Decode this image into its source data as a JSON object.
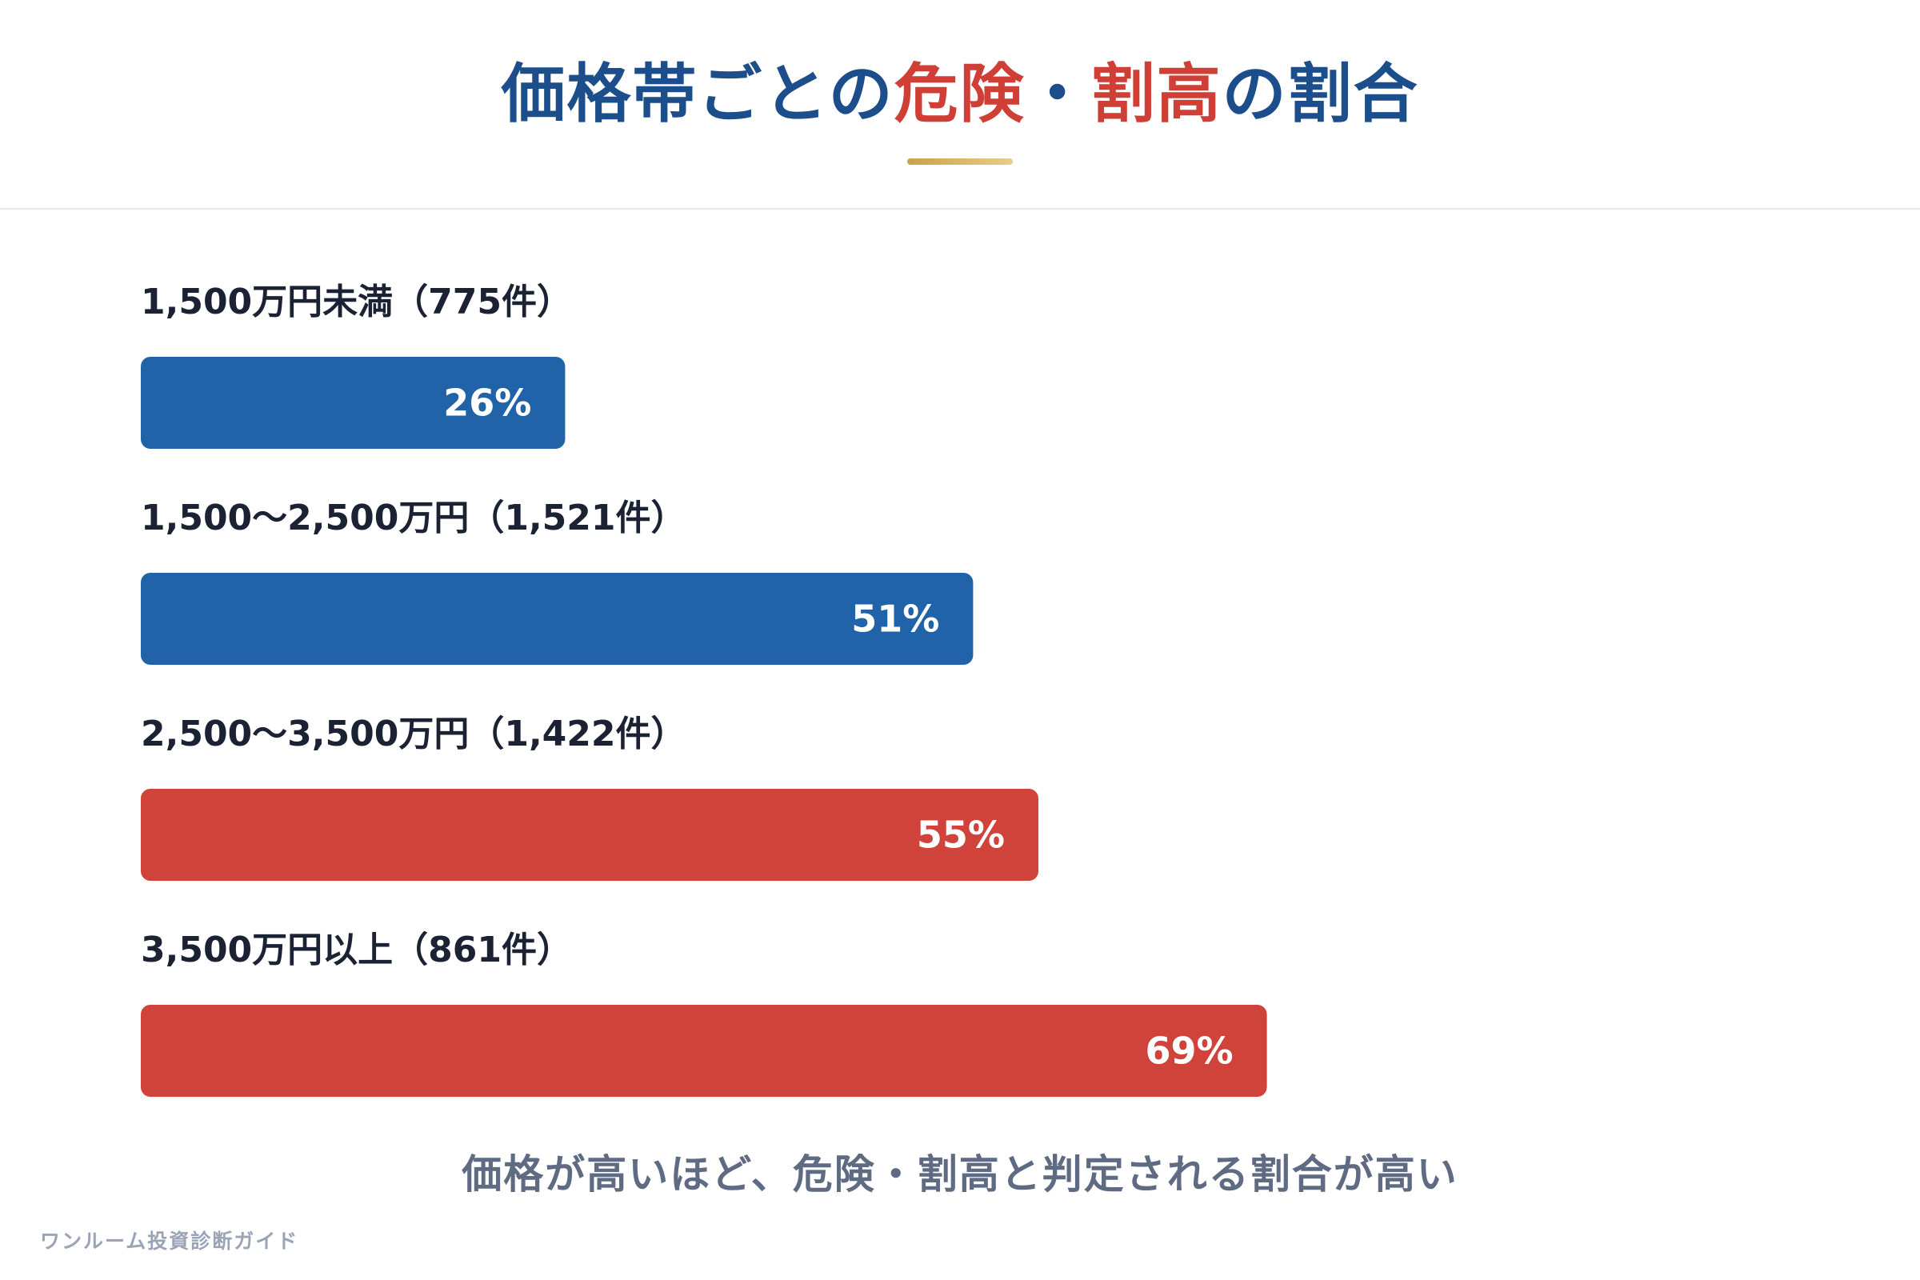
{
  "title": {
    "part1": "価格帯ごとの",
    "accent1": "危険",
    "sep": "・",
    "accent2": "割高",
    "part2": "の割合"
  },
  "chart_data": {
    "type": "bar",
    "orientation": "horizontal",
    "title": "価格帯ごとの危険・割高の割合",
    "categories": [
      "1,500万円未満（775件）",
      "1,500〜2,500万円（1,521件）",
      "2,500〜3,500万円（1,422件）",
      "3,500万円以上（861件）"
    ],
    "values": [
      26,
      51,
      55,
      69
    ],
    "value_labels": [
      "26%",
      "51%",
      "55%",
      "69%"
    ],
    "unit": "%",
    "xlim": [
      0,
      100
    ],
    "bar_colors": [
      "#2163a8",
      "#2163a8",
      "#cf433a",
      "#cf433a"
    ],
    "grid": false,
    "legend": "none"
  },
  "caption": "価格が高いほど、危険・割高と判定される割合が高い",
  "footer": "ワンルーム投資診断ガイド",
  "colors": {
    "title_blue": "#1c4e8c",
    "accent_red": "#cf3f36",
    "bar_blue": "#2163a8",
    "bar_red": "#cf433a",
    "label_text": "#1b2233",
    "caption_text": "#5e6b82",
    "underline_gold": "#c9a24a"
  }
}
